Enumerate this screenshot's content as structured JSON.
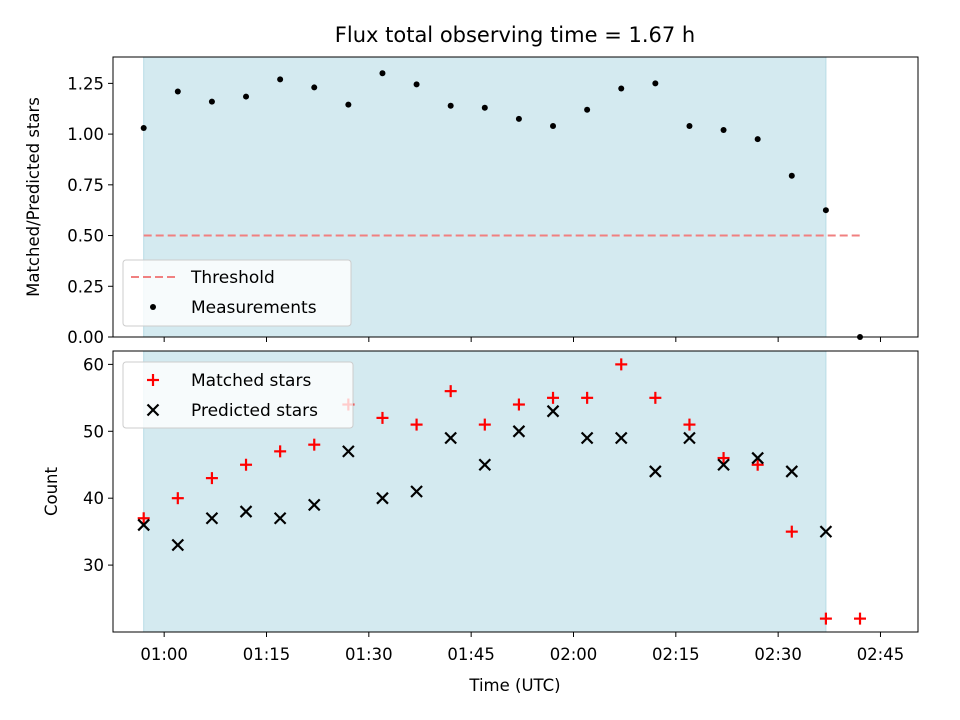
{
  "figure": {
    "title": "Flux total observing time = 1.67 h",
    "xlabel": "Time (UTC)",
    "x_ticks": [
      "01:00",
      "01:15",
      "01:30",
      "01:45",
      "02:00",
      "02:15",
      "02:30",
      "02:45"
    ],
    "x_tick_minutes": [
      60,
      75,
      90,
      105,
      120,
      135,
      150,
      165
    ],
    "xlim_minutes": [
      52.5,
      170.5
    ],
    "observing_window_minutes": [
      57,
      157
    ],
    "observing_window_color": "#d4eaf0"
  },
  "chart_data": [
    {
      "type": "scatter",
      "ylabel": "Matched/Predicted stars",
      "ylim": [
        0,
        1.38
      ],
      "y_ticks": [
        0.0,
        0.25,
        0.5,
        0.75,
        1.0,
        1.25
      ],
      "y_tick_labels": [
        "0.00",
        "0.25",
        "0.50",
        "0.75",
        "1.00",
        "1.25"
      ],
      "legend_position": "bottom-left",
      "threshold": {
        "name": "Threshold",
        "y": 0.5,
        "x_range": [
          57,
          162
        ],
        "color": "#f08080",
        "style": "dashed"
      },
      "series": [
        {
          "name": "Measurements",
          "marker": "dot",
          "color": "#000000",
          "x": [
            57,
            62,
            67,
            72,
            77,
            82,
            87,
            92,
            97,
            102,
            107,
            112,
            117,
            122,
            127,
            132,
            137,
            142,
            147,
            152,
            157,
            162
          ],
          "y": [
            1.03,
            1.21,
            1.16,
            1.185,
            1.27,
            1.23,
            1.145,
            1.3,
            1.245,
            1.14,
            1.13,
            1.075,
            1.04,
            1.12,
            1.225,
            1.25,
            1.04,
            1.02,
            0.975,
            0.795,
            0.625,
            0.0
          ]
        }
      ]
    },
    {
      "type": "scatter",
      "ylabel": "Count",
      "ylim": [
        20,
        62
      ],
      "y_ticks": [
        30,
        40,
        50,
        60
      ],
      "y_tick_labels": [
        "30",
        "40",
        "50",
        "60"
      ],
      "legend_position": "top-left",
      "series": [
        {
          "name": "Matched stars",
          "marker": "plus",
          "color": "#ff0000",
          "x": [
            57,
            62,
            67,
            72,
            77,
            82,
            87,
            92,
            97,
            102,
            107,
            112,
            117,
            122,
            127,
            132,
            137,
            142,
            147,
            152,
            157,
            162
          ],
          "y": [
            37,
            40,
            43,
            45,
            47,
            48,
            54,
            52,
            51,
            56,
            51,
            54,
            55,
            55,
            60,
            55,
            51,
            46,
            45,
            35,
            22,
            22
          ]
        },
        {
          "name": "Predicted stars",
          "marker": "x",
          "color": "#000000",
          "x": [
            57,
            62,
            67,
            72,
            77,
            82,
            87,
            92,
            97,
            102,
            107,
            112,
            117,
            122,
            127,
            132,
            137,
            142,
            147,
            152,
            157
          ],
          "y": [
            36,
            33,
            37,
            38,
            37,
            39,
            47,
            40,
            41,
            49,
            45,
            50,
            53,
            49,
            49,
            44,
            49,
            45,
            46,
            44,
            35
          ]
        }
      ]
    }
  ]
}
